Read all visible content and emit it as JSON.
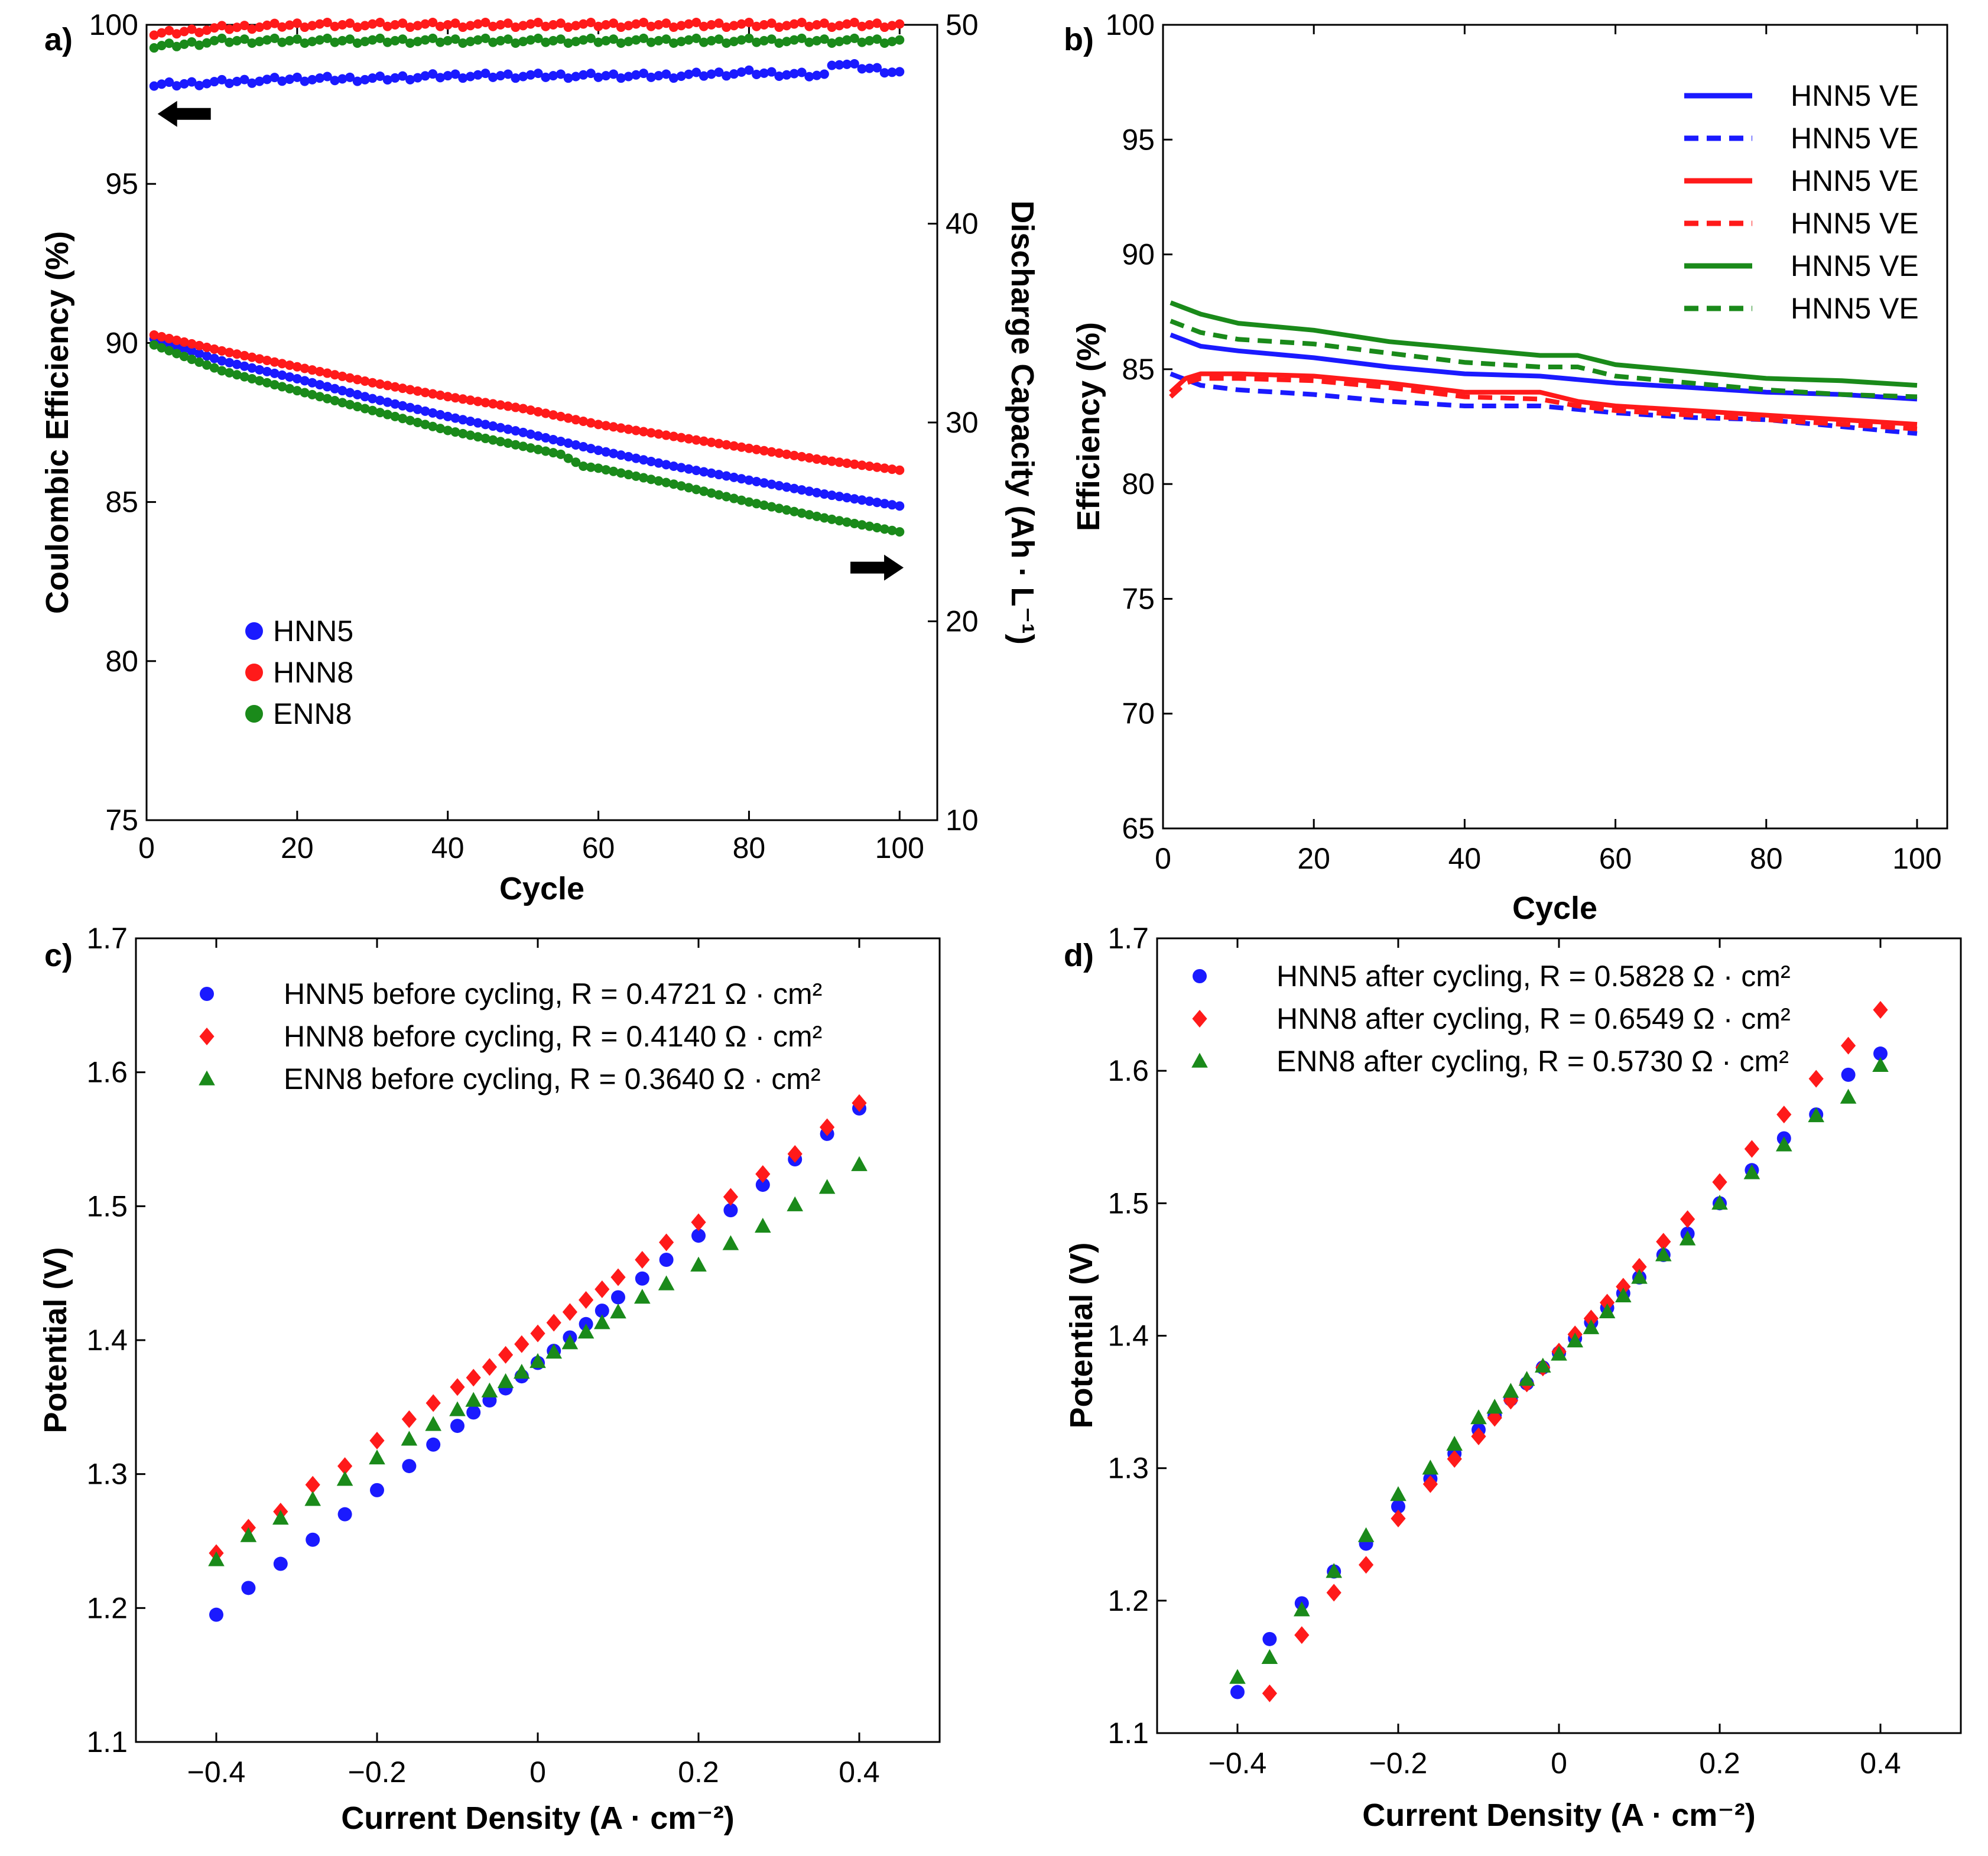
{
  "chart_data": [
    {
      "panel_label": "a)",
      "type": "scatter",
      "xlabel": "Cycle",
      "ylabel": "Coulombic Efficiency (%)",
      "ylabel_right": "Discharge Capacity (Ah · L⁻¹)",
      "xlim": [
        0,
        105
      ],
      "ylim": [
        75,
        100
      ],
      "ylim_right": [
        10,
        50
      ],
      "xticks": [
        "0",
        "20",
        "40",
        "60",
        "80",
        "100"
      ],
      "yticks": [
        "75",
        "80",
        "85",
        "90",
        "95",
        "100"
      ],
      "yticks_right": [
        "10",
        "20",
        "30",
        "40",
        "50"
      ],
      "arrows": [
        {
          "direction": "left",
          "axis": "left",
          "x": 5,
          "y": 97.2
        },
        {
          "direction": "right",
          "axis": "right",
          "x": 97,
          "y": 22.7
        }
      ],
      "legend": [
        "HNN5",
        "HNN8",
        "ENN8"
      ],
      "legend_location": "lower-left",
      "series": [
        {
          "name": "HNN5",
          "color": "#1a1aff",
          "metric": "coulombic_efficiency",
          "axis": "left",
          "x": [
            1,
            10,
            20,
            30,
            40,
            50,
            60,
            70,
            80,
            90,
            91,
            100
          ],
          "y": [
            98.1,
            98.2,
            98.3,
            98.3,
            98.4,
            98.4,
            98.4,
            98.4,
            98.5,
            98.4,
            98.8,
            98.5
          ]
        },
        {
          "name": "HNN8",
          "color": "#ff1a1a",
          "metric": "coulombic_efficiency",
          "axis": "left",
          "x": [
            1,
            10,
            20,
            30,
            40,
            50,
            60,
            70,
            80,
            90,
            100
          ],
          "y": [
            99.7,
            99.9,
            100.0,
            100.0,
            100.0,
            100.0,
            100.0,
            100.0,
            100.0,
            100.0,
            100.0
          ]
        },
        {
          "name": "ENN8",
          "color": "#1a8a1a",
          "metric": "coulombic_efficiency",
          "axis": "left",
          "x": [
            1,
            10,
            20,
            30,
            40,
            50,
            60,
            70,
            80,
            90,
            100
          ],
          "y": [
            99.3,
            99.5,
            99.5,
            99.5,
            99.5,
            99.5,
            99.5,
            99.5,
            99.5,
            99.5,
            99.5
          ]
        },
        {
          "name": "HNN5",
          "color": "#1a1aff",
          "metric": "discharge_capacity",
          "axis": "right",
          "x": [
            1,
            10,
            20,
            30,
            40,
            50,
            60,
            70,
            80,
            90,
            100
          ],
          "y": [
            34.2,
            33.1,
            32.2,
            31.2,
            30.3,
            29.5,
            28.6,
            27.8,
            27.1,
            26.4,
            25.8
          ]
        },
        {
          "name": "HNN8",
          "color": "#ff1a1a",
          "metric": "discharge_capacity",
          "axis": "right",
          "x": [
            1,
            10,
            20,
            30,
            40,
            50,
            60,
            70,
            80,
            90,
            100
          ],
          "y": [
            34.4,
            33.6,
            32.8,
            32.0,
            31.3,
            30.7,
            29.9,
            29.3,
            28.7,
            28.1,
            27.6
          ]
        },
        {
          "name": "ENN8",
          "color": "#1a8a1a",
          "metric": "discharge_capacity",
          "axis": "right",
          "x": [
            1,
            10,
            20,
            30,
            40,
            50,
            55,
            58,
            60,
            70,
            80,
            90,
            100
          ],
          "y": [
            33.9,
            32.6,
            31.6,
            30.6,
            29.6,
            28.8,
            28.4,
            27.8,
            27.7,
            26.9,
            26.0,
            25.2,
            24.5
          ]
        }
      ]
    },
    {
      "panel_label": "b)",
      "type": "line",
      "xlabel": "Cycle",
      "ylabel": "Efficiency (%)",
      "xlim": [
        0,
        104
      ],
      "ylim": [
        65,
        100
      ],
      "xticks": [
        "0",
        "20",
        "40",
        "60",
        "80",
        "100"
      ],
      "yticks": [
        "65",
        "70",
        "75",
        "80",
        "85",
        "90",
        "95",
        "100"
      ],
      "legend_location": "top-right",
      "series": [
        {
          "name": "HNN5 VE",
          "color": "#1a1aff",
          "style": "solid",
          "x": [
            1,
            5,
            10,
            20,
            30,
            40,
            50,
            60,
            70,
            80,
            90,
            100
          ],
          "y": [
            86.5,
            86.0,
            85.8,
            85.5,
            85.1,
            84.8,
            84.7,
            84.4,
            84.2,
            84.0,
            83.9,
            83.7
          ]
        },
        {
          "name": "HNN5 VE",
          "color": "#1a1aff",
          "style": "dashed",
          "x": [
            1,
            5,
            10,
            20,
            30,
            40,
            50,
            60,
            70,
            80,
            90,
            100
          ],
          "y": [
            84.8,
            84.3,
            84.1,
            83.9,
            83.6,
            83.4,
            83.4,
            83.1,
            82.9,
            82.8,
            82.5,
            82.2
          ]
        },
        {
          "name": "HNN5 VE",
          "color": "#ff1a1a",
          "style": "solid",
          "x": [
            1,
            3,
            5,
            10,
            20,
            30,
            40,
            50,
            55,
            60,
            70,
            80,
            90,
            100
          ],
          "y": [
            84.0,
            84.6,
            84.8,
            84.8,
            84.7,
            84.4,
            84.0,
            84.0,
            83.6,
            83.4,
            83.2,
            83.0,
            82.8,
            82.6
          ]
        },
        {
          "name": "HNN5 VE",
          "color": "#ff1a1a",
          "style": "dashed",
          "x": [
            1,
            3,
            5,
            10,
            20,
            30,
            40,
            50,
            55,
            60,
            70,
            80,
            90,
            100
          ],
          "y": [
            83.8,
            84.4,
            84.6,
            84.6,
            84.5,
            84.2,
            83.8,
            83.7,
            83.4,
            83.2,
            83.0,
            82.8,
            82.6,
            82.4
          ]
        },
        {
          "name": "HNN5 VE",
          "color": "#1a8a1a",
          "style": "solid",
          "x": [
            1,
            5,
            10,
            20,
            30,
            40,
            50,
            55,
            60,
            70,
            80,
            90,
            100
          ],
          "y": [
            87.9,
            87.4,
            87.0,
            86.7,
            86.2,
            85.9,
            85.6,
            85.6,
            85.2,
            84.9,
            84.6,
            84.5,
            84.3
          ]
        },
        {
          "name": "HNN5 VE",
          "color": "#1a8a1a",
          "style": "dashed",
          "x": [
            1,
            5,
            10,
            20,
            30,
            40,
            50,
            55,
            60,
            70,
            80,
            90,
            100
          ],
          "y": [
            87.1,
            86.6,
            86.3,
            86.1,
            85.7,
            85.3,
            85.1,
            85.1,
            84.7,
            84.4,
            84.1,
            83.9,
            83.8
          ]
        }
      ]
    },
    {
      "panel_label": "c)",
      "type": "scatter",
      "xlabel": "Current Density (A · cm⁻²)",
      "ylabel": "Potential (V)",
      "xlim": [
        -0.5,
        0.5
      ],
      "ylim": [
        1.1,
        1.7
      ],
      "xticks": [
        "−0.4",
        "−0.2",
        "0",
        "0.2",
        "0.4"
      ],
      "yticks": [
        "1.1",
        "1.2",
        "1.3",
        "1.4",
        "1.5",
        "1.6",
        "1.7"
      ],
      "legend_location": "top",
      "series": [
        {
          "name": "HNN5 before cycling, R = 0.4721 Ω · cm²",
          "color": "#1a1aff",
          "marker": "circle",
          "x": [
            -0.4,
            -0.36,
            -0.32,
            -0.28,
            -0.24,
            -0.2,
            -0.16,
            -0.13,
            -0.1,
            -0.08,
            -0.06,
            -0.04,
            -0.02,
            0.0,
            0.02,
            0.04,
            0.06,
            0.08,
            0.1,
            0.13,
            0.16,
            0.2,
            0.24,
            0.28,
            0.32,
            0.36,
            0.4
          ],
          "y": [
            1.195,
            1.215,
            1.233,
            1.251,
            1.27,
            1.288,
            1.306,
            1.322,
            1.336,
            1.346,
            1.355,
            1.364,
            1.373,
            1.383,
            1.392,
            1.402,
            1.412,
            1.422,
            1.432,
            1.446,
            1.46,
            1.478,
            1.497,
            1.516,
            1.535,
            1.554,
            1.573
          ]
        },
        {
          "name": "HNN8 before cycling, R = 0.4140 Ω · cm²",
          "color": "#ff1a1a",
          "marker": "diamond",
          "x": [
            -0.4,
            -0.36,
            -0.32,
            -0.28,
            -0.24,
            -0.2,
            -0.16,
            -0.13,
            -0.1,
            -0.08,
            -0.06,
            -0.04,
            -0.02,
            0.0,
            0.02,
            0.04,
            0.06,
            0.08,
            0.1,
            0.13,
            0.16,
            0.2,
            0.24,
            0.28,
            0.32,
            0.36,
            0.4
          ],
          "y": [
            1.241,
            1.26,
            1.272,
            1.292,
            1.306,
            1.325,
            1.341,
            1.353,
            1.365,
            1.372,
            1.38,
            1.389,
            1.397,
            1.405,
            1.413,
            1.421,
            1.43,
            1.438,
            1.447,
            1.46,
            1.473,
            1.488,
            1.507,
            1.524,
            1.539,
            1.559,
            1.577
          ]
        },
        {
          "name": "ENN8 before cycling, R = 0.3640 Ω · cm²",
          "color": "#1a8a1a",
          "marker": "triangle",
          "x": [
            -0.4,
            -0.36,
            -0.32,
            -0.28,
            -0.24,
            -0.2,
            -0.16,
            -0.13,
            -0.1,
            -0.08,
            -0.06,
            -0.04,
            -0.02,
            0.0,
            0.02,
            0.04,
            0.06,
            0.08,
            0.1,
            0.13,
            0.16,
            0.2,
            0.24,
            0.28,
            0.32,
            0.36,
            0.4
          ],
          "y": [
            1.236,
            1.254,
            1.267,
            1.281,
            1.296,
            1.312,
            1.326,
            1.337,
            1.348,
            1.355,
            1.362,
            1.369,
            1.376,
            1.384,
            1.391,
            1.398,
            1.406,
            1.413,
            1.421,
            1.432,
            1.442,
            1.456,
            1.472,
            1.485,
            1.501,
            1.514,
            1.531
          ]
        }
      ]
    },
    {
      "panel_label": "d)",
      "type": "scatter",
      "xlabel": "Current Density (A · cm⁻²)",
      "ylabel": "Potential (V)",
      "xlim": [
        -0.5,
        0.5
      ],
      "ylim": [
        1.1,
        1.7
      ],
      "xticks": [
        "−0.4",
        "−0.2",
        "0",
        "0.2",
        "0.4"
      ],
      "yticks": [
        "1.1",
        "1.2",
        "1.3",
        "1.4",
        "1.5",
        "1.6",
        "1.7"
      ],
      "legend_location": "top",
      "series": [
        {
          "name": "HNN5 after cycling, R = 0.5828 Ω · cm²",
          "color": "#1a1aff",
          "marker": "circle",
          "x": [
            -0.4,
            -0.36,
            -0.32,
            -0.28,
            -0.24,
            -0.2,
            -0.16,
            -0.13,
            -0.1,
            -0.08,
            -0.06,
            -0.04,
            -0.02,
            0.0,
            0.02,
            0.04,
            0.06,
            0.08,
            0.1,
            0.13,
            0.16,
            0.2,
            0.24,
            0.28,
            0.32,
            0.36,
            0.4
          ],
          "y": [
            1.131,
            1.171,
            1.198,
            1.222,
            1.243,
            1.271,
            1.292,
            1.311,
            1.329,
            1.34,
            1.352,
            1.364,
            1.376,
            1.387,
            1.398,
            1.41,
            1.421,
            1.432,
            1.444,
            1.461,
            1.477,
            1.5,
            1.525,
            1.549,
            1.567,
            1.597,
            1.613
          ]
        },
        {
          "name": "HNN8 after cycling, R = 0.6549 Ω · cm²",
          "color": "#ff1a1a",
          "marker": "diamond",
          "x": [
            -0.36,
            -0.32,
            -0.28,
            -0.24,
            -0.2,
            -0.16,
            -0.13,
            -0.1,
            -0.08,
            -0.06,
            -0.04,
            -0.02,
            0.0,
            0.02,
            0.04,
            0.06,
            0.08,
            0.1,
            0.13,
            0.16,
            0.2,
            0.24,
            0.28,
            0.32,
            0.36,
            0.4
          ],
          "y": [
            1.13,
            1.174,
            1.206,
            1.227,
            1.262,
            1.288,
            1.307,
            1.324,
            1.338,
            1.351,
            1.364,
            1.376,
            1.388,
            1.401,
            1.413,
            1.425,
            1.437,
            1.452,
            1.471,
            1.488,
            1.516,
            1.541,
            1.567,
            1.594,
            1.619,
            1.646
          ]
        },
        {
          "name": "ENN8 after cycling, R = 0.5730 Ω · cm²",
          "color": "#1a8a1a",
          "marker": "triangle",
          "x": [
            -0.4,
            -0.36,
            -0.32,
            -0.28,
            -0.24,
            -0.2,
            -0.16,
            -0.13,
            -0.1,
            -0.08,
            -0.06,
            -0.04,
            -0.02,
            0.0,
            0.02,
            0.04,
            0.06,
            0.08,
            0.1,
            0.13,
            0.16,
            0.2,
            0.24,
            0.28,
            0.32,
            0.36,
            0.4
          ],
          "y": [
            1.142,
            1.157,
            1.193,
            1.222,
            1.249,
            1.28,
            1.3,
            1.318,
            1.338,
            1.346,
            1.358,
            1.367,
            1.377,
            1.386,
            1.396,
            1.406,
            1.418,
            1.43,
            1.444,
            1.461,
            1.473,
            1.5,
            1.523,
            1.544,
            1.566,
            1.58,
            1.604
          ]
        }
      ]
    }
  ]
}
